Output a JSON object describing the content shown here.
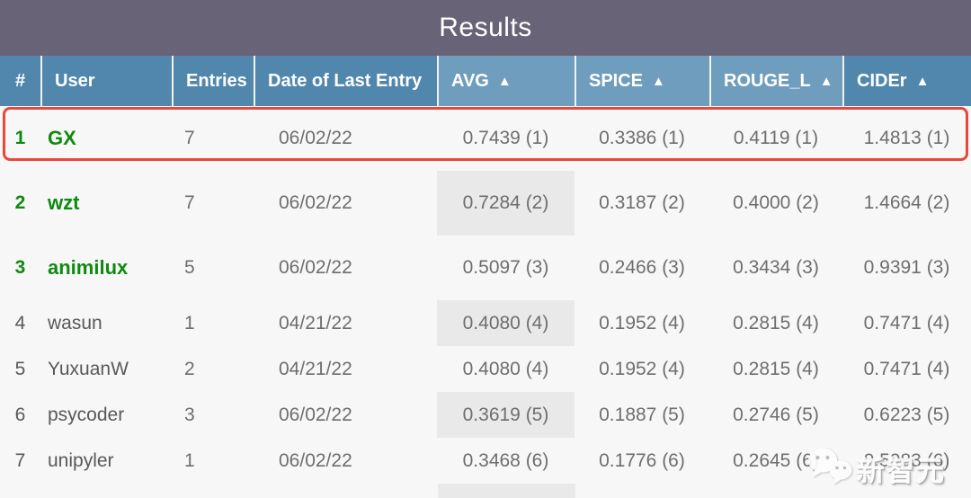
{
  "title": "Results",
  "sort_arrow": "▲",
  "columns": [
    {
      "key": "rank",
      "label": "#",
      "sortable": false
    },
    {
      "key": "user",
      "label": "User",
      "sortable": false
    },
    {
      "key": "entries",
      "label": "Entries",
      "sortable": false
    },
    {
      "key": "date",
      "label": "Date of Last Entry",
      "sortable": false
    },
    {
      "key": "avg",
      "label": "AVG",
      "sortable": true
    },
    {
      "key": "spice",
      "label": "SPICE",
      "sortable": true
    },
    {
      "key": "rouge_l",
      "label": "ROUGE_L",
      "sortable": true
    },
    {
      "key": "cider",
      "label": "CIDEr",
      "sortable": true
    }
  ],
  "rows": [
    {
      "rank": "1",
      "user": "GX",
      "entries": "7",
      "date": "06/02/22",
      "avg": "0.7439 (1)",
      "spice": "0.3386 (1)",
      "rouge_l": "0.4119 (1)",
      "cider": "1.4813 (1)",
      "top_user": true,
      "avg_shaded": false,
      "highlighted": true
    },
    {
      "rank": "2",
      "user": "wzt",
      "entries": "7",
      "date": "06/02/22",
      "avg": "0.7284 (2)",
      "spice": "0.3187 (2)",
      "rouge_l": "0.4000 (2)",
      "cider": "1.4664 (2)",
      "top_user": true,
      "avg_shaded": true,
      "highlighted": false
    },
    {
      "rank": "3",
      "user": "animilux",
      "entries": "5",
      "date": "06/02/22",
      "avg": "0.5097 (3)",
      "spice": "0.2466 (3)",
      "rouge_l": "0.3434 (3)",
      "cider": "0.9391 (3)",
      "top_user": true,
      "avg_shaded": false,
      "highlighted": false
    },
    {
      "rank": "4",
      "user": "wasun",
      "entries": "1",
      "date": "04/21/22",
      "avg": "0.4080 (4)",
      "spice": "0.1952 (4)",
      "rouge_l": "0.2815 (4)",
      "cider": "0.7471 (4)",
      "top_user": false,
      "avg_shaded": true,
      "highlighted": false
    },
    {
      "rank": "5",
      "user": "YuxuanW",
      "entries": "2",
      "date": "04/21/22",
      "avg": "0.4080 (4)",
      "spice": "0.1952 (4)",
      "rouge_l": "0.2815 (4)",
      "cider": "0.7471 (4)",
      "top_user": false,
      "avg_shaded": false,
      "highlighted": false
    },
    {
      "rank": "6",
      "user": "psycoder",
      "entries": "3",
      "date": "06/02/22",
      "avg": "0.3619 (5)",
      "spice": "0.1887 (5)",
      "rouge_l": "0.2746 (5)",
      "cider": "0.6223 (5)",
      "top_user": false,
      "avg_shaded": true,
      "highlighted": false
    },
    {
      "rank": "7",
      "user": "unipyler",
      "entries": "1",
      "date": "06/02/22",
      "avg": "0.3468 (6)",
      "spice": "0.1776 (6)",
      "rouge_l": "0.2645 (6)",
      "cider": "0.5983 (6)",
      "top_user": false,
      "avg_shaded": false,
      "highlighted": false
    }
  ],
  "next_row_peek": {
    "avg_shaded": true
  },
  "watermark": {
    "label": "新智元",
    "icon": "wechat-icon"
  },
  "colors": {
    "title_bar": "#696377",
    "header_dark": "#5187ad",
    "header_light": "#6f9dbd",
    "body_bg": "#f7f7f7",
    "avg_stripe": "#e9e9e9",
    "link_green": "#0f8a10",
    "highlight_red": "#e8483b",
    "value_gray": "#6e6e6e"
  }
}
